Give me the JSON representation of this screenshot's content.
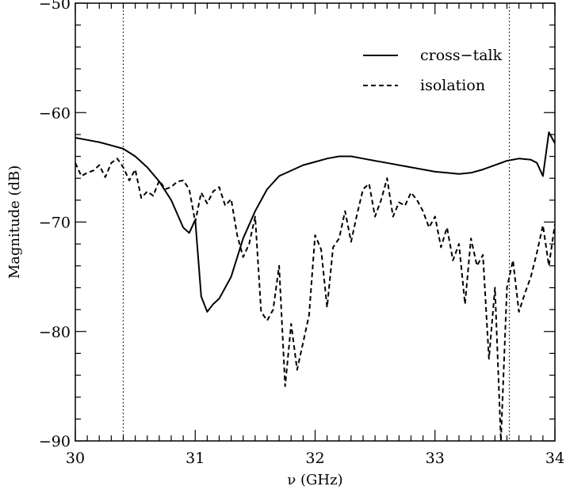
{
  "chart_data": {
    "type": "line",
    "xlabel": "ν (GHz)",
    "ylabel": "Magnitude (dB)",
    "xlim": [
      30,
      34
    ],
    "ylim": [
      -90,
      -50
    ],
    "x_ticks": [
      30,
      31,
      32,
      33,
      34
    ],
    "y_ticks": [
      -90,
      -80,
      -70,
      -60,
      -50
    ],
    "grid": false,
    "legend_position": "top-right",
    "reference_lines_x": [
      30.4,
      33.62
    ],
    "series": [
      {
        "name": "cross−talk",
        "style": "solid",
        "color": "#000000",
        "x": [
          30.0,
          30.1,
          30.2,
          30.3,
          30.4,
          30.5,
          30.6,
          30.7,
          30.8,
          30.9,
          30.95,
          31.0,
          31.05,
          31.1,
          31.15,
          31.2,
          31.3,
          31.4,
          31.5,
          31.6,
          31.7,
          31.8,
          31.9,
          32.0,
          32.1,
          32.2,
          32.3,
          32.4,
          32.5,
          32.6,
          32.7,
          32.8,
          32.9,
          33.0,
          33.1,
          33.2,
          33.3,
          33.4,
          33.5,
          33.6,
          33.7,
          33.8,
          33.85,
          33.9,
          33.95,
          34.0
        ],
        "values": [
          -62.3,
          -62.5,
          -62.7,
          -63.0,
          -63.3,
          -64.0,
          -65.0,
          -66.3,
          -68.0,
          -70.5,
          -71.0,
          -69.8,
          -76.8,
          -78.2,
          -77.5,
          -77.0,
          -75.0,
          -71.5,
          -69.0,
          -67.0,
          -65.8,
          -65.3,
          -64.8,
          -64.5,
          -64.2,
          -64.0,
          -64.0,
          -64.2,
          -64.4,
          -64.6,
          -64.8,
          -65.0,
          -65.2,
          -65.4,
          -65.5,
          -65.6,
          -65.5,
          -65.2,
          -64.8,
          -64.4,
          -64.2,
          -64.3,
          -64.6,
          -65.8,
          -61.8,
          -62.8
        ]
      },
      {
        "name": "isolation",
        "style": "dashed",
        "color": "#000000",
        "x": [
          30.0,
          30.05,
          30.1,
          30.15,
          30.2,
          30.25,
          30.3,
          30.35,
          30.4,
          30.45,
          30.5,
          30.55,
          30.6,
          30.65,
          30.7,
          30.75,
          30.8,
          30.85,
          30.9,
          30.95,
          31.0,
          31.05,
          31.1,
          31.15,
          31.2,
          31.25,
          31.3,
          31.35,
          31.4,
          31.45,
          31.5,
          31.55,
          31.6,
          31.65,
          31.7,
          31.75,
          31.8,
          31.85,
          31.9,
          31.95,
          32.0,
          32.05,
          32.1,
          32.15,
          32.2,
          32.25,
          32.3,
          32.35,
          32.4,
          32.45,
          32.5,
          32.55,
          32.6,
          32.65,
          32.7,
          32.75,
          32.8,
          32.85,
          32.9,
          32.95,
          33.0,
          33.05,
          33.1,
          33.15,
          33.2,
          33.25,
          33.3,
          33.35,
          33.4,
          33.45,
          33.5,
          33.55,
          33.6,
          33.65,
          33.7,
          33.75,
          33.8,
          33.85,
          33.9,
          33.95,
          34.0
        ],
        "values": [
          -64.6,
          -65.8,
          -65.5,
          -65.3,
          -64.8,
          -65.9,
          -64.6,
          -64.2,
          -65.0,
          -66.2,
          -65.2,
          -67.8,
          -67.2,
          -67.6,
          -66.2,
          -67.0,
          -66.8,
          -66.3,
          -66.2,
          -67.0,
          -70.0,
          -67.3,
          -68.3,
          -67.2,
          -66.8,
          -68.5,
          -67.9,
          -71.2,
          -73.2,
          -72.0,
          -69.5,
          -78.2,
          -79.0,
          -78.0,
          -74.0,
          -85.0,
          -79.3,
          -83.5,
          -81.0,
          -78.5,
          -71.2,
          -72.5,
          -77.8,
          -72.3,
          -71.5,
          -69.0,
          -71.8,
          -69.3,
          -67.0,
          -66.5,
          -69.5,
          -68.0,
          -66.0,
          -69.5,
          -68.2,
          -68.5,
          -67.3,
          -68.0,
          -69.0,
          -70.5,
          -69.5,
          -72.3,
          -70.5,
          -73.5,
          -72.0,
          -77.5,
          -71.5,
          -74.0,
          -73.0,
          -82.5,
          -76.0,
          -90.0,
          -76.0,
          -73.5,
          -78.2,
          -76.5,
          -75.0,
          -72.8,
          -70.3,
          -74.0,
          -70.2
        ]
      }
    ]
  }
}
